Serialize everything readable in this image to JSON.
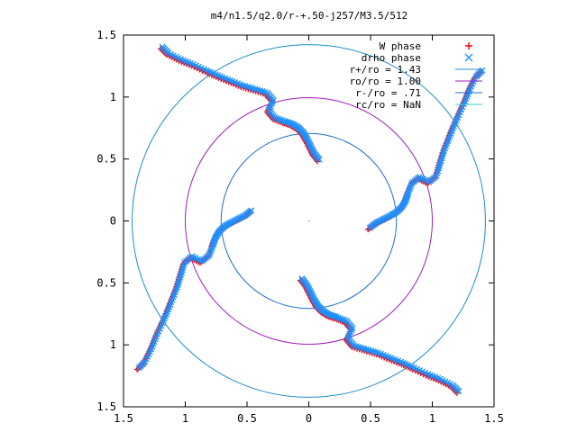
{
  "chart_data": {
    "type": "scatter",
    "title": "m4/n1.5/q2.0/r-+.50-j257/M3.5/512",
    "xlim": [
      -1.5,
      1.5
    ],
    "ylim": [
      -1.5,
      1.5
    ],
    "x_ticks": [
      {
        "value": -1.5,
        "label": "1.5"
      },
      {
        "value": -1.0,
        "label": "1"
      },
      {
        "value": -0.5,
        "label": "0.5"
      },
      {
        "value": 0,
        "label": "0"
      },
      {
        "value": 0.5,
        "label": "0.5"
      },
      {
        "value": 1.0,
        "label": "1"
      },
      {
        "value": 1.5,
        "label": "1.5"
      }
    ],
    "y_ticks": [
      {
        "value": 1.5,
        "label": "1.5"
      },
      {
        "value": 1.0,
        "label": "1"
      },
      {
        "value": 0.5,
        "label": "0.5"
      },
      {
        "value": 0,
        "label": "0"
      },
      {
        "value": -0.5,
        "label": "0.5"
      },
      {
        "value": -1.0,
        "label": "1"
      },
      {
        "value": -1.5,
        "label": "1.5"
      }
    ],
    "grid": false,
    "legend_position": "top-right",
    "series": [
      {
        "name": "W phase",
        "kind": "points",
        "marker": "+",
        "color": "#ff0000"
      },
      {
        "name": "drho phase",
        "kind": "points",
        "marker": "x",
        "color": "#1e90ff"
      },
      {
        "name": "r+/ro = 1.43",
        "kind": "circle",
        "radius": 1.43,
        "color": "#1c8fc9"
      },
      {
        "name": "ro/ro = 1.00",
        "kind": "circle",
        "radius": 1.0,
        "color": "#a01dbf"
      },
      {
        "name": "r-/ro = .71",
        "kind": "circle",
        "radius": 0.71,
        "color": "#1c6fc9"
      },
      {
        "name": "rc/ro = NaN",
        "kind": "circle",
        "radius": null,
        "color": "#33cccc"
      }
    ],
    "arms": [
      {
        "series": "W phase",
        "points": [
          [
            0.48,
            -0.07
          ],
          [
            0.53,
            -0.03
          ],
          [
            0.59,
            0.0
          ],
          [
            0.65,
            0.03
          ],
          [
            0.7,
            0.06
          ],
          [
            0.74,
            0.1
          ],
          [
            0.77,
            0.15
          ],
          [
            0.79,
            0.21
          ],
          [
            0.82,
            0.29
          ],
          [
            0.88,
            0.34
          ],
          [
            0.96,
            0.3
          ],
          [
            1.02,
            0.35
          ],
          [
            1.05,
            0.45
          ],
          [
            1.08,
            0.55
          ],
          [
            1.12,
            0.65
          ],
          [
            1.16,
            0.75
          ],
          [
            1.2,
            0.84
          ],
          [
            1.25,
            0.95
          ],
          [
            1.29,
            1.05
          ],
          [
            1.34,
            1.15
          ],
          [
            1.39,
            1.2
          ]
        ]
      },
      {
        "series": "drho phase",
        "points": [
          [
            0.48,
            -0.07
          ],
          [
            0.53,
            -0.03
          ],
          [
            0.59,
            0.0
          ],
          [
            0.65,
            0.03
          ],
          [
            0.7,
            0.06
          ],
          [
            0.74,
            0.1
          ],
          [
            0.77,
            0.15
          ],
          [
            0.79,
            0.21
          ],
          [
            0.82,
            0.29
          ],
          [
            0.88,
            0.34
          ],
          [
            0.96,
            0.3
          ],
          [
            1.02,
            0.35
          ],
          [
            1.05,
            0.45
          ],
          [
            1.08,
            0.55
          ],
          [
            1.12,
            0.65
          ],
          [
            1.16,
            0.75
          ],
          [
            1.2,
            0.84
          ],
          [
            1.25,
            0.95
          ],
          [
            1.29,
            1.05
          ],
          [
            1.34,
            1.15
          ],
          [
            1.39,
            1.2
          ]
        ]
      }
    ]
  }
}
